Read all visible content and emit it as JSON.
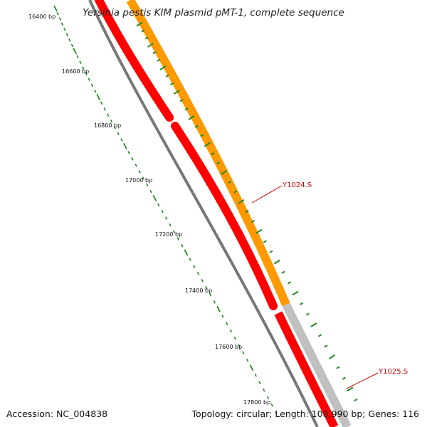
{
  "title": "Yersinia pestis KIM plasmid pMT-1, complete sequence",
  "footer": {
    "accession": "Accession: NC_004838",
    "summary": "Topology: circular; Length: 100,990 bp; Genes: 116"
  },
  "ruler": {
    "labels": [
      "16400 bp",
      "16600 bp",
      "16800 bp",
      "17000 bp",
      "17200 bp",
      "17400 bp",
      "17600 bp",
      "17800 bp"
    ]
  },
  "genes": [
    {
      "label": "Y1024.S",
      "color": "#cc0000"
    },
    {
      "label": "Y1025.S",
      "color": "#cc0000"
    }
  ],
  "colors": {
    "backbone": "#777777",
    "cds": "#ff0000",
    "orf_outer": "#ff9900",
    "orf_grey": "#c0c0c0",
    "tick_green": "#228822",
    "label_red": "#cc0000"
  }
}
